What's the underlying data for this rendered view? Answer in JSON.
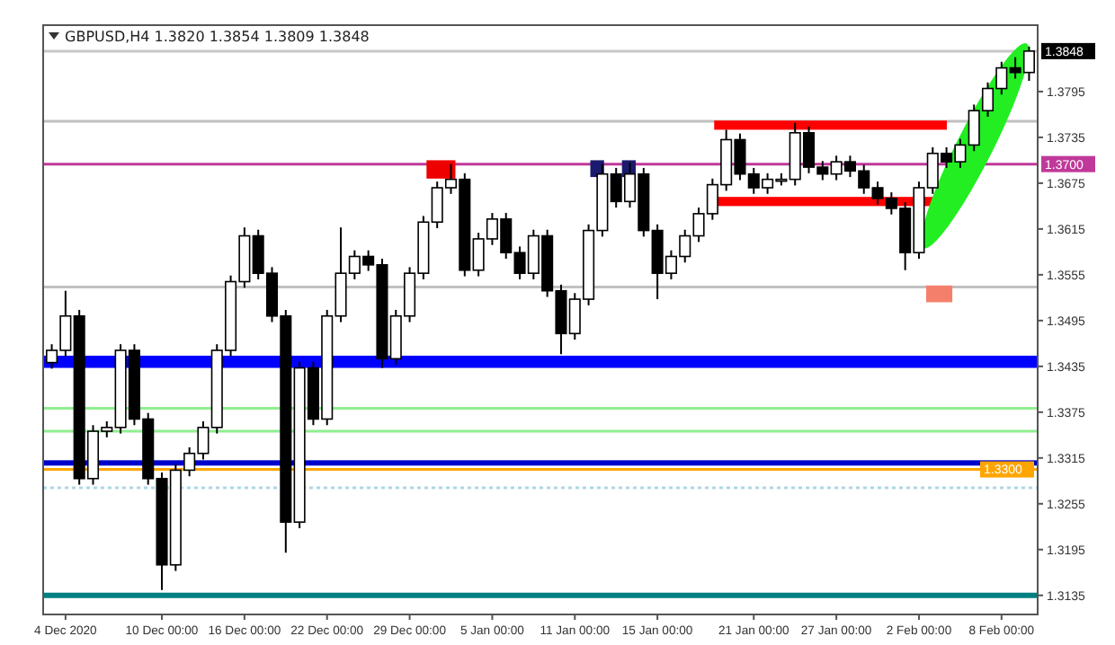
{
  "chart_data": {
    "type": "candlestick",
    "title": "GBPUSD,H4 1.3820 1.3854 1.3809 1.3848",
    "categories": [
      null,
      "4 Dec 2020",
      null,
      null,
      null,
      null,
      null,
      null,
      "10 Dec 00:00",
      null,
      null,
      null,
      null,
      null,
      "16 Dec 00:00",
      null,
      null,
      null,
      null,
      null,
      "22 Dec 00:00",
      null,
      null,
      null,
      null,
      null,
      "29 Dec 00:00",
      null,
      null,
      null,
      null,
      null,
      "5 Jan 00:00",
      null,
      null,
      null,
      null,
      null,
      "11 Jan 00:00",
      null,
      null,
      null,
      null,
      null,
      "15 Jan 00:00",
      null,
      null,
      null,
      null,
      null,
      null,
      "21 Jan 00:00",
      null,
      null,
      null,
      null,
      null,
      "27 Jan 00:00",
      null,
      null,
      null,
      null,
      null,
      "2 Feb 00:00",
      null,
      null,
      null,
      null,
      null,
      "8 Feb 00:00",
      null,
      null
    ],
    "ohlc": [
      [
        1.344,
        1.3464,
        1.3432,
        1.3456
      ],
      [
        1.3456,
        1.3534,
        1.3448,
        1.3501
      ],
      [
        1.3501,
        1.3509,
        1.328,
        1.3288
      ],
      [
        1.3288,
        1.3358,
        1.328,
        1.335
      ],
      [
        1.335,
        1.3363,
        1.3342,
        1.3355
      ],
      [
        1.3355,
        1.3464,
        1.3347,
        1.3456
      ],
      [
        1.3456,
        1.3464,
        1.3358,
        1.3366
      ],
      [
        1.3366,
        1.3374,
        1.328,
        1.3288
      ],
      [
        1.3288,
        1.3296,
        1.3142,
        1.3175
      ],
      [
        1.3175,
        1.3307,
        1.3167,
        1.3299
      ],
      [
        1.3299,
        1.3329,
        1.3291,
        1.3321
      ],
      [
        1.3321,
        1.3363,
        1.3313,
        1.3355
      ],
      [
        1.3355,
        1.3464,
        1.3347,
        1.3456
      ],
      [
        1.3456,
        1.3554,
        1.3448,
        1.3546
      ],
      [
        1.3546,
        1.3617,
        1.3538,
        1.3606
      ],
      [
        1.3606,
        1.3614,
        1.3549,
        1.3557
      ],
      [
        1.3557,
        1.3565,
        1.3493,
        1.3501
      ],
      [
        1.3501,
        1.3509,
        1.3191,
        1.3231
      ],
      [
        1.3231,
        1.3441,
        1.3223,
        1.3433
      ],
      [
        1.3433,
        1.3441,
        1.3358,
        1.3366
      ],
      [
        1.3366,
        1.3509,
        1.3358,
        1.3501
      ],
      [
        1.3501,
        1.3617,
        1.3493,
        1.3557
      ],
      [
        1.3557,
        1.3587,
        1.3549,
        1.3579
      ],
      [
        1.3579,
        1.3587,
        1.356,
        1.3568
      ],
      [
        1.3568,
        1.3576,
        1.3433,
        1.3445
      ],
      [
        1.3445,
        1.3509,
        1.3437,
        1.3501
      ],
      [
        1.3501,
        1.3565,
        1.3493,
        1.3557
      ],
      [
        1.3557,
        1.3632,
        1.3549,
        1.3624
      ],
      [
        1.3624,
        1.3677,
        1.3616,
        1.3669
      ],
      [
        1.3669,
        1.37,
        1.3661,
        1.368
      ],
      [
        1.368,
        1.3688,
        1.3553,
        1.3561
      ],
      [
        1.3561,
        1.361,
        1.3553,
        1.3602
      ],
      [
        1.3602,
        1.3636,
        1.3594,
        1.3628
      ],
      [
        1.3628,
        1.3636,
        1.3576,
        1.3584
      ],
      [
        1.3584,
        1.3592,
        1.3549,
        1.3557
      ],
      [
        1.3557,
        1.3614,
        1.3549,
        1.3606
      ],
      [
        1.3606,
        1.3614,
        1.3526,
        1.3534
      ],
      [
        1.3534,
        1.3542,
        1.3451,
        1.3478
      ],
      [
        1.3478,
        1.3531,
        1.347,
        1.3523
      ],
      [
        1.3523,
        1.3621,
        1.3515,
        1.3613
      ],
      [
        1.3613,
        1.37,
        1.3605,
        1.3687
      ],
      [
        1.3687,
        1.3695,
        1.3643,
        1.3651
      ],
      [
        1.3651,
        1.3702,
        1.3643,
        1.3687
      ],
      [
        1.3687,
        1.3695,
        1.3605,
        1.3613
      ],
      [
        1.3613,
        1.3621,
        1.3523,
        1.3557
      ],
      [
        1.3557,
        1.3587,
        1.3549,
        1.3579
      ],
      [
        1.3579,
        1.3614,
        1.3571,
        1.3606
      ],
      [
        1.3606,
        1.3643,
        1.3598,
        1.3635
      ],
      [
        1.3635,
        1.3681,
        1.3627,
        1.3673
      ],
      [
        1.3673,
        1.3745,
        1.3665,
        1.3732
      ],
      [
        1.3732,
        1.374,
        1.3679,
        1.3687
      ],
      [
        1.3687,
        1.3695,
        1.3661,
        1.3669
      ],
      [
        1.3669,
        1.3688,
        1.3661,
        1.368
      ],
      [
        1.368,
        1.3688,
        1.3672,
        1.368
      ],
      [
        1.368,
        1.3754,
        1.3672,
        1.3741
      ],
      [
        1.3741,
        1.3749,
        1.3688,
        1.3696
      ],
      [
        1.3696,
        1.3704,
        1.3679,
        1.3687
      ],
      [
        1.3687,
        1.3711,
        1.3679,
        1.3703
      ],
      [
        1.3703,
        1.3711,
        1.3683,
        1.3691
      ],
      [
        1.3691,
        1.3699,
        1.3661,
        1.3669
      ],
      [
        1.3669,
        1.3677,
        1.3647,
        1.3655
      ],
      [
        1.3655,
        1.3663,
        1.3634,
        1.3642
      ],
      [
        1.3642,
        1.365,
        1.3561,
        1.3584
      ],
      [
        1.3584,
        1.3677,
        1.3576,
        1.3669
      ],
      [
        1.3669,
        1.3722,
        1.3661,
        1.3714
      ],
      [
        1.3714,
        1.3722,
        1.3695,
        1.3703
      ],
      [
        1.3703,
        1.3733,
        1.3695,
        1.3725
      ],
      [
        1.3725,
        1.3778,
        1.3717,
        1.377
      ],
      [
        1.377,
        1.3807,
        1.3762,
        1.3799
      ],
      [
        1.3799,
        1.3834,
        1.3791,
        1.3826
      ],
      [
        1.3826,
        1.384,
        1.3812,
        1.382
      ],
      [
        1.382,
        1.3854,
        1.3809,
        1.3848
      ]
    ],
    "ylim": [
      1.311,
      1.3882
    ],
    "yticks": [
      "1.3135",
      "1.3195",
      "1.3255",
      "1.3315",
      "1.3375",
      "1.3435",
      "1.3495",
      "1.3555",
      "1.3615",
      "1.3675",
      "1.3735",
      "1.3795"
    ],
    "ref_lines": [
      {
        "axis": "y",
        "value": 1.3848,
        "label": "1.3848",
        "color": "#c8c8c8"
      },
      {
        "axis": "y",
        "value": 1.3756,
        "color": "#c0c0c0"
      },
      {
        "axis": "y",
        "value": 1.37,
        "label": "1.3700",
        "color": "#c0399a"
      },
      {
        "axis": "y",
        "value": 1.3539,
        "color": "#c0c0c0"
      },
      {
        "axis": "y",
        "value": 1.338,
        "color": "#90ee90"
      },
      {
        "axis": "y",
        "value": 1.335,
        "color": "#90ee90"
      },
      {
        "axis": "y",
        "value": 1.33,
        "label": "1.3300",
        "color": "#ffa500"
      },
      {
        "axis": "y",
        "value": 1.3276,
        "color": "#add8e6",
        "line_style": "dotted"
      },
      {
        "axis": "y",
        "value": 1.3135,
        "color": "#008080"
      }
    ],
    "bands": [
      {
        "axis": "y",
        "from": 1.3433,
        "to": 1.3449,
        "color": "#0000ff"
      },
      {
        "axis": "y",
        "from": 1.3305,
        "to": 1.3312,
        "color": "#0000cc"
      }
    ]
  }
}
